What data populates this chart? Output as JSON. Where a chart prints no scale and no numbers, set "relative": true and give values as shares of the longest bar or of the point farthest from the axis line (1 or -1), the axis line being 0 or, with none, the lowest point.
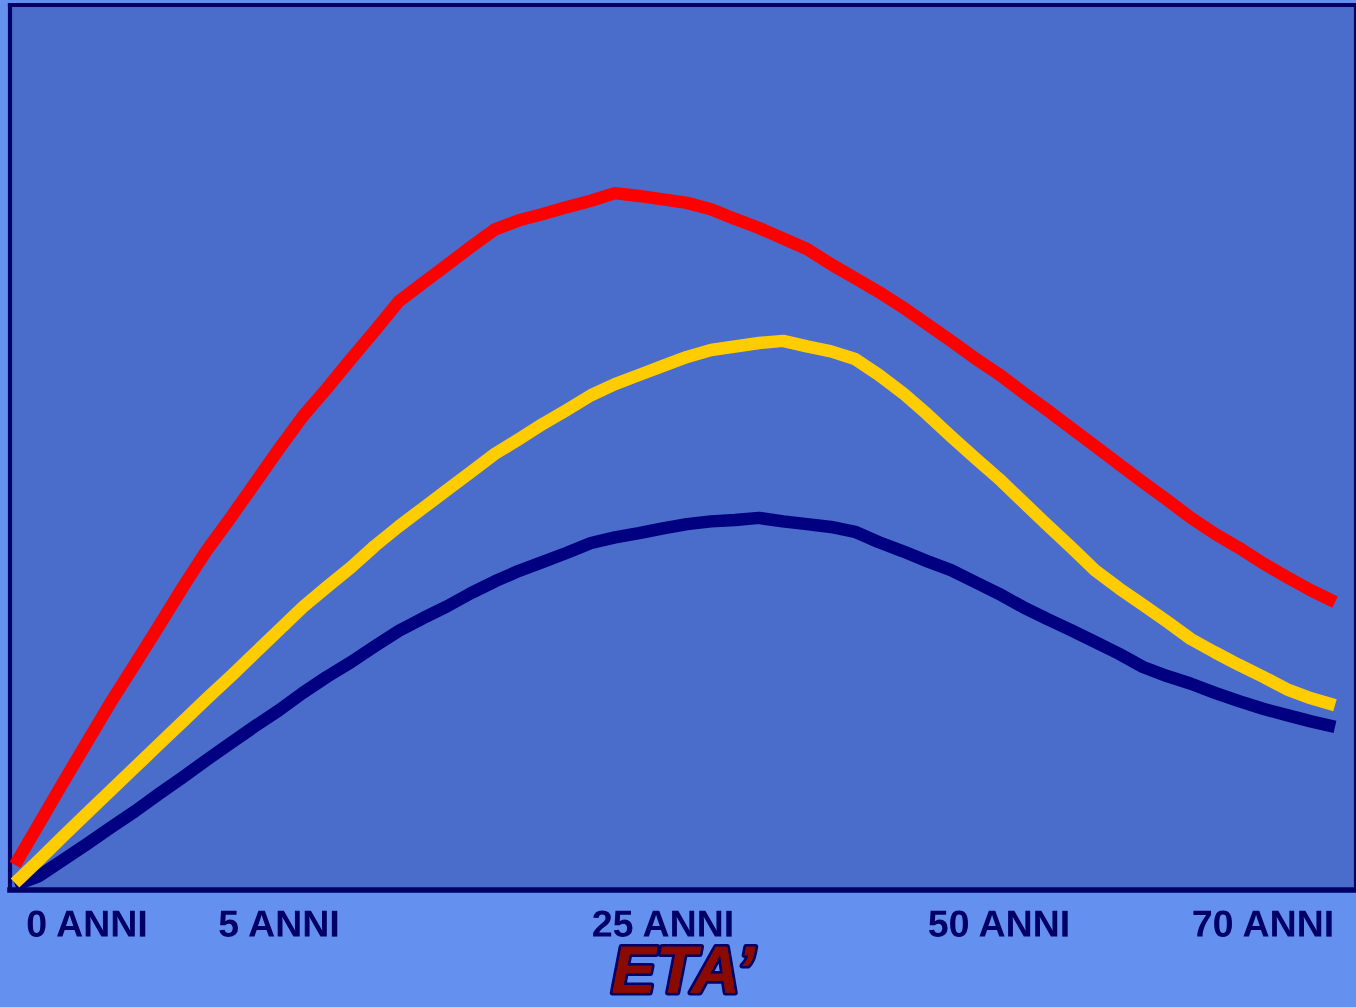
{
  "chart_data": {
    "type": "line",
    "relative": true,
    "xlabel": "ETA’",
    "grid": false,
    "marker": "none",
    "line_style": "solid",
    "categories": [
      null,
      null,
      null,
      "0 ANNI",
      null,
      null,
      null,
      null,
      null,
      null,
      null,
      "5 ANNI",
      null,
      null,
      null,
      null,
      null,
      null,
      null,
      null,
      null,
      null,
      null,
      null,
      null,
      null,
      null,
      "25 ANNI",
      null,
      null,
      null,
      null,
      null,
      null,
      null,
      null,
      null,
      null,
      null,
      null,
      null,
      "50 ANNI",
      null,
      null,
      null,
      null,
      null,
      null,
      null,
      null,
      null,
      null,
      "70 ANNI",
      null,
      null,
      null
    ],
    "series": [
      {
        "color": "#ff0000",
        "values": [
          0.036,
          0.095,
          0.154,
          0.212,
          0.27,
          0.324,
          0.379,
          0.435,
          0.488,
          0.535,
          0.584,
          0.633,
          0.68,
          0.72,
          0.762,
          0.803,
          0.845,
          0.871,
          0.897,
          0.923,
          0.948,
          0.961,
          0.97,
          0.98,
          0.989,
          1.0,
          0.996,
          0.991,
          0.986,
          0.977,
          0.963,
          0.95,
          0.935,
          0.92,
          0.898,
          0.878,
          0.858,
          0.836,
          0.812,
          0.788,
          0.763,
          0.74,
          0.714,
          0.689,
          0.663,
          0.637,
          0.611,
          0.585,
          0.56,
          0.534,
          0.511,
          0.491,
          0.469,
          0.449,
          0.43,
          0.413
        ]
      },
      {
        "color": "#000080",
        "values": [
          0.007,
          0.02,
          0.043,
          0.066,
          0.09,
          0.113,
          0.138,
          0.162,
          0.187,
          0.211,
          0.235,
          0.258,
          0.283,
          0.306,
          0.327,
          0.35,
          0.372,
          0.39,
          0.407,
          0.426,
          0.443,
          0.458,
          0.471,
          0.484,
          0.498,
          0.506,
          0.512,
          0.519,
          0.525,
          0.529,
          0.531,
          0.534,
          0.529,
          0.525,
          0.521,
          0.514,
          0.499,
          0.486,
          0.472,
          0.459,
          0.442,
          0.425,
          0.406,
          0.389,
          0.373,
          0.356,
          0.339,
          0.32,
          0.307,
          0.296,
          0.283,
          0.271,
          0.26,
          0.251,
          0.242,
          0.234
        ]
      },
      {
        "color": "#ffcc00",
        "values": [
          0.01,
          0.043,
          0.077,
          0.11,
          0.143,
          0.176,
          0.209,
          0.242,
          0.275,
          0.307,
          0.34,
          0.373,
          0.406,
          0.435,
          0.463,
          0.494,
          0.522,
          0.548,
          0.574,
          0.6,
          0.626,
          0.647,
          0.669,
          0.689,
          0.71,
          0.726,
          0.739,
          0.752,
          0.765,
          0.775,
          0.78,
          0.785,
          0.788,
          0.78,
          0.773,
          0.762,
          0.739,
          0.713,
          0.683,
          0.651,
          0.62,
          0.59,
          0.557,
          0.524,
          0.492,
          0.459,
          0.433,
          0.409,
          0.385,
          0.36,
          0.341,
          0.323,
          0.306,
          0.288,
          0.275,
          0.265
        ]
      }
    ]
  }
}
